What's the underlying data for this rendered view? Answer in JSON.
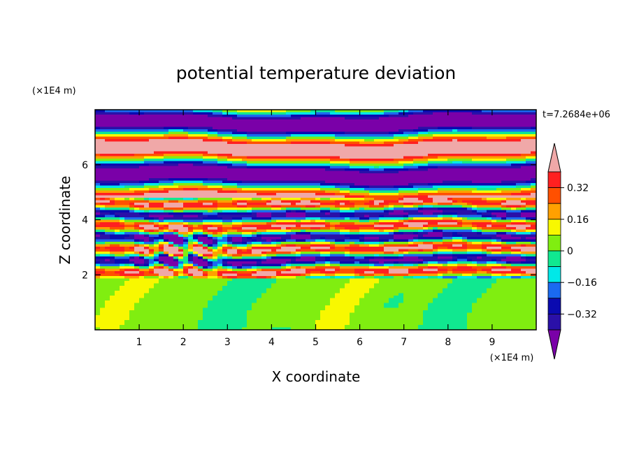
{
  "chart_data": {
    "type": "heatmap",
    "title": "potential temperature deviation",
    "xlabel": "X coordinate",
    "ylabel": "Z coordinate",
    "x_unit": "(×1E4 m)",
    "y_unit": "(×1E4 m)",
    "time_label": "t=7.2684e+06",
    "xlim": [
      0,
      10
    ],
    "ylim": [
      0,
      8
    ],
    "x_ticks": [
      "1",
      "2",
      "3",
      "4",
      "5",
      "6",
      "7",
      "8",
      "9"
    ],
    "y_ticks": [
      "2",
      "4",
      "6"
    ],
    "colorbar": {
      "levels": [
        -0.4,
        -0.32,
        -0.24,
        -0.16,
        -0.08,
        0,
        0.08,
        0.16,
        0.24,
        0.32,
        0.4
      ],
      "labels": [
        "0.32",
        "0.16",
        "0",
        "−0.16",
        "−0.32"
      ],
      "colors": [
        "#7a00a8",
        "#2a10a8",
        "#0a0ab0",
        "#1a6af0",
        "#00e8e8",
        "#10e890",
        "#80ee10",
        "#f8f800",
        "#ffa000",
        "#ff5000",
        "#ff2020",
        "#f0a8a8"
      ],
      "extend": "both"
    },
    "regions": [
      {
        "z_range": [
          0,
          1.9
        ],
        "description": "smooth near-zero field",
        "dominant_values": [
          0,
          0.08
        ]
      },
      {
        "z_range": [
          1.9,
          4.8
        ],
        "description": "turbulent banded layer with wave packet near x=1.5–3",
        "dominant_values": [
          -0.4,
          0.4
        ]
      },
      {
        "z_range": [
          4.8,
          8
        ],
        "description": "alternating horizontal bands of extreme values",
        "dominant_values": [
          -0.4,
          0.4
        ]
      }
    ]
  }
}
